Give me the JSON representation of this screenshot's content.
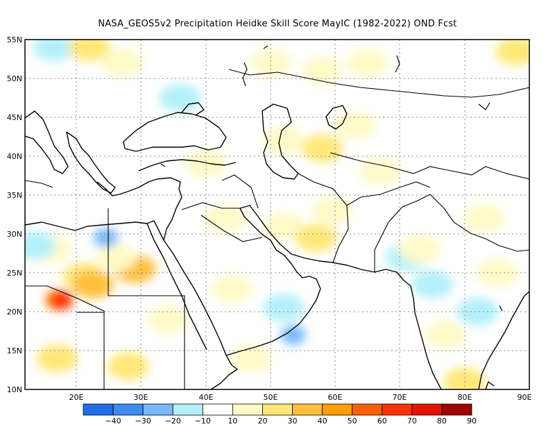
{
  "title": "NASA_GEOS5v2  Precipitation Heidke Skill Score MayIC (1982-2022) OND Fcst",
  "lat_labels": [
    "55N",
    "50N",
    "45N",
    "40N",
    "35N",
    "30N",
    "25N",
    "20N",
    "15N",
    "10N"
  ],
  "lon_labels": [
    "20E",
    "30E",
    "40E",
    "50E",
    "60E",
    "70E",
    "80E",
    "90E"
  ],
  "colorbar": {
    "labels": [
      "−40",
      "−30",
      "−20",
      "−10",
      "10",
      "20",
      "30",
      "40",
      "50",
      "60",
      "70",
      "80",
      "90"
    ],
    "colors": [
      "#1e6eeb",
      "#3c8cf0",
      "#78b9fa",
      "#b4f0fa",
      "#ffffff",
      "#fffac8",
      "#ffe878",
      "#ffc03c",
      "#ffa000",
      "#ff6000",
      "#ff3200",
      "#e11400",
      "#a50000"
    ]
  },
  "map": {
    "lon_range": [
      12,
      90
    ],
    "lat_range": [
      10,
      55
    ],
    "patches": [
      {
        "lon": 16.5,
        "lat": 54,
        "color": "#b4f0fa"
      },
      {
        "lon": 22,
        "lat": 54,
        "color": "#ffe878"
      },
      {
        "lon": 27,
        "lat": 52,
        "color": "#fffac8"
      },
      {
        "lon": 36,
        "lat": 47.5,
        "color": "#b4f0fa"
      },
      {
        "lon": 50,
        "lat": 52,
        "color": "#fffac8"
      },
      {
        "lon": 58,
        "lat": 51,
        "color": "#fffac8"
      },
      {
        "lon": 65,
        "lat": 52,
        "color": "#fffac8"
      },
      {
        "lon": 88,
        "lat": 53.5,
        "color": "#ffe878"
      },
      {
        "lon": 40,
        "lat": 39,
        "color": "#fffac8"
      },
      {
        "lon": 52,
        "lat": 42,
        "color": "#fffac8"
      },
      {
        "lon": 58,
        "lat": 41,
        "color": "#ffe878"
      },
      {
        "lon": 63,
        "lat": 44,
        "color": "#fffac8"
      },
      {
        "lon": 67,
        "lat": 38,
        "color": "#fffac8"
      },
      {
        "lon": 43,
        "lat": 32,
        "color": "#fffac8"
      },
      {
        "lon": 52,
        "lat": 31,
        "color": "#fffac8"
      },
      {
        "lon": 57,
        "lat": 29.5,
        "color": "#ffe878"
      },
      {
        "lon": 59.5,
        "lat": 33,
        "color": "#fffac8"
      },
      {
        "lon": 83,
        "lat": 32,
        "color": "#fffac8"
      },
      {
        "lon": 21,
        "lat": 24.5,
        "color": "#ffe878"
      },
      {
        "lon": 22.5,
        "lat": 23.5,
        "color": "#ffc03c"
      },
      {
        "lon": 17,
        "lat": 21.5,
        "color": "#ffa000"
      },
      {
        "lon": 17.5,
        "lat": 21.5,
        "color": "#ff3200"
      },
      {
        "lon": 29,
        "lat": 25.5,
        "color": "#ffc03c"
      },
      {
        "lon": 16,
        "lat": 28,
        "color": "#fffac8"
      },
      {
        "lon": 26,
        "lat": 27,
        "color": "#fffac8"
      },
      {
        "lon": 44,
        "lat": 23,
        "color": "#fffac8"
      },
      {
        "lon": 52,
        "lat": 20.5,
        "color": "#b4f0fa"
      },
      {
        "lon": 53.5,
        "lat": 17,
        "color": "#78b9fa"
      },
      {
        "lon": 17,
        "lat": 14,
        "color": "#ffe878"
      },
      {
        "lon": 28,
        "lat": 13,
        "color": "#ffe878"
      },
      {
        "lon": 34,
        "lat": 19,
        "color": "#fffac8"
      },
      {
        "lon": 47,
        "lat": 14,
        "color": "#fffac8"
      },
      {
        "lon": 24.5,
        "lat": 29.5,
        "color": "#78b9fa"
      },
      {
        "lon": 13.5,
        "lat": 28.5,
        "color": "#b4f0fa"
      },
      {
        "lon": 71,
        "lat": 27,
        "color": "#b4f0fa"
      },
      {
        "lon": 75,
        "lat": 23.5,
        "color": "#b4f0fa"
      },
      {
        "lon": 82,
        "lat": 20,
        "color": "#b4f0fa"
      },
      {
        "lon": 73,
        "lat": 28,
        "color": "#fffac8"
      },
      {
        "lon": 77,
        "lat": 17,
        "color": "#fffac8"
      },
      {
        "lon": 85,
        "lat": 25,
        "color": "#fffac8"
      },
      {
        "lon": 80,
        "lat": 11,
        "color": "#ffe878"
      }
    ]
  }
}
